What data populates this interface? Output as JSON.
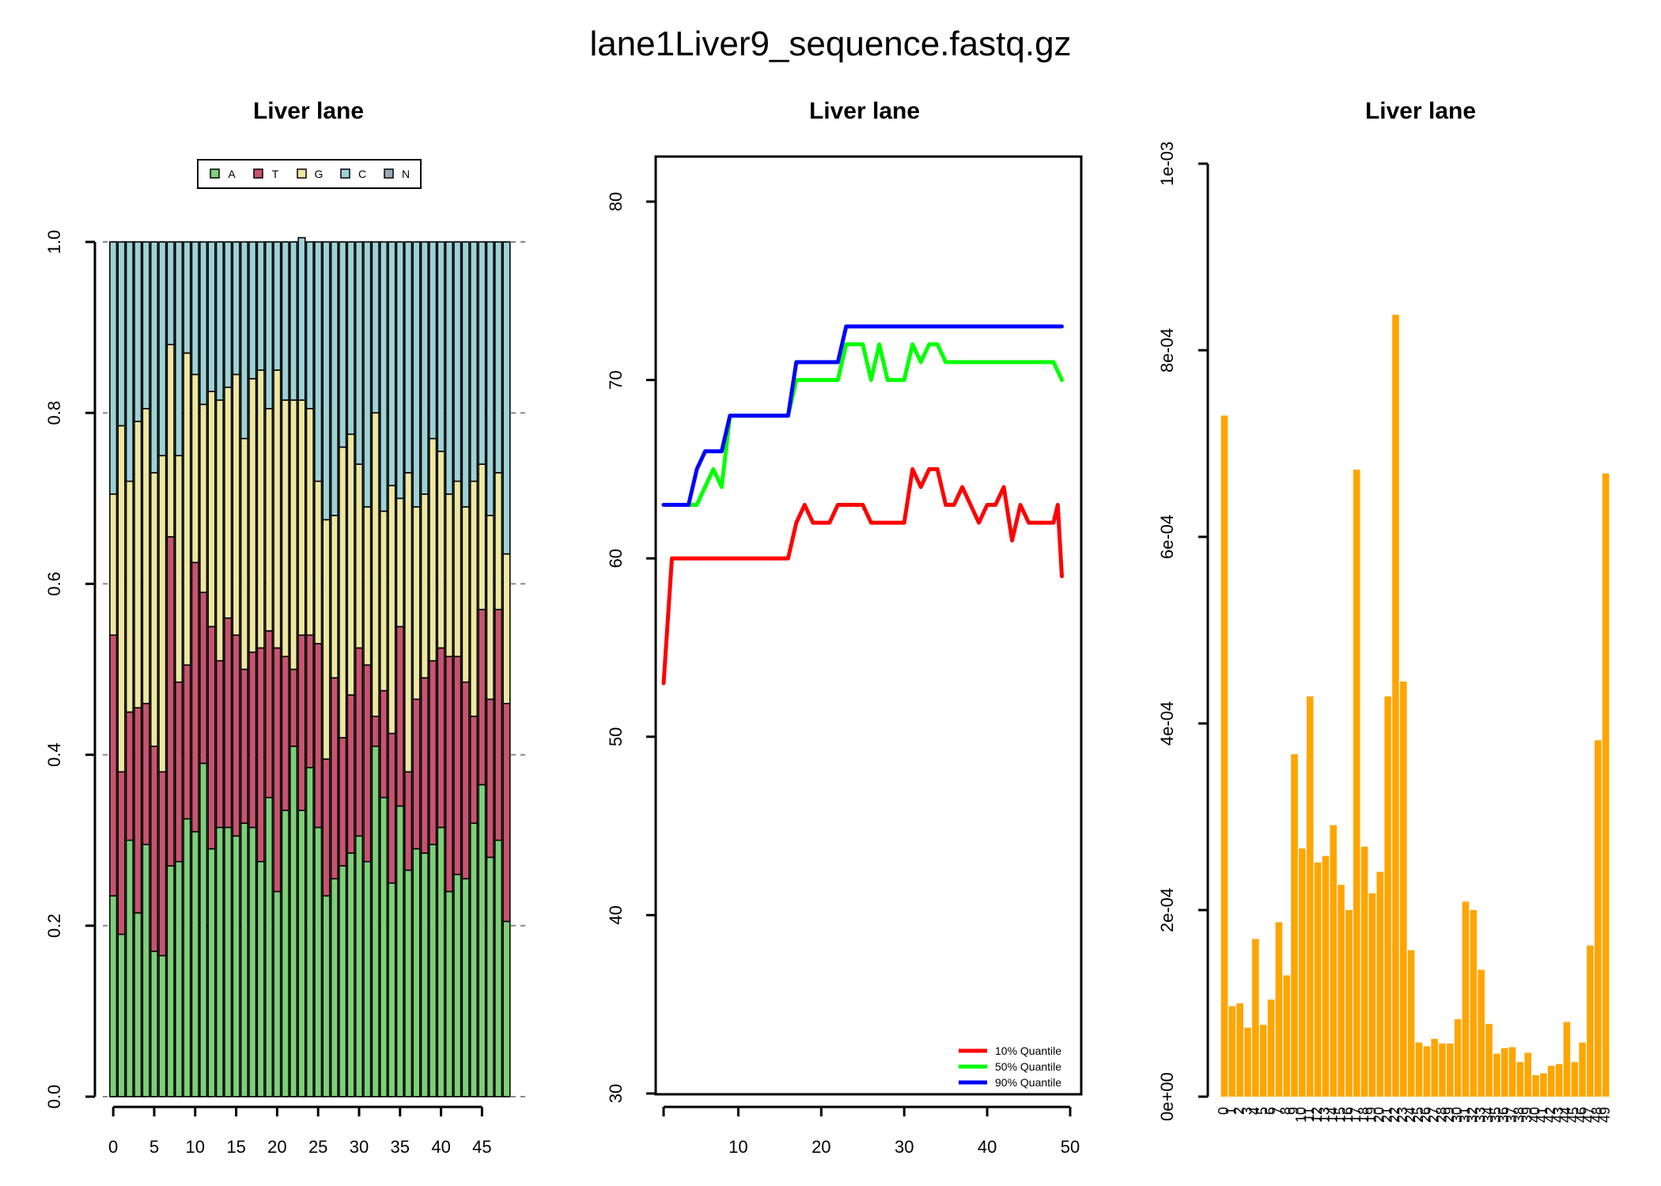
{
  "figure_title": "lane1Liver9_sequence.fastq.gz",
  "chart_data": [
    {
      "type": "bar",
      "stacked": true,
      "title": "Liver lane",
      "legend": {
        "placement": "top",
        "entries": [
          "A",
          "T",
          "G",
          "C",
          "N"
        ]
      },
      "x": [
        0,
        1,
        2,
        3,
        4,
        5,
        6,
        7,
        8,
        9,
        10,
        11,
        12,
        13,
        14,
        15,
        16,
        17,
        18,
        19,
        20,
        21,
        22,
        23,
        24,
        25,
        26,
        27,
        28,
        29,
        30,
        31,
        32,
        33,
        34,
        35,
        36,
        37,
        38,
        39,
        40,
        41,
        42,
        43,
        44,
        45,
        46,
        47,
        48
      ],
      "xticks": [
        0,
        5,
        10,
        15,
        20,
        25,
        30,
        35,
        40,
        45
      ],
      "ylim": [
        0,
        1
      ],
      "yticks": [
        "0.0",
        "0.2",
        "0.4",
        "0.6",
        "0.8",
        "1.0"
      ],
      "grid": "horizontal dashed",
      "series": [
        {
          "name": "A",
          "color": "#7dcf78",
          "values": [
            0.235,
            0.19,
            0.3,
            0.215,
            0.295,
            0.17,
            0.165,
            0.27,
            0.275,
            0.325,
            0.31,
            0.39,
            0.29,
            0.315,
            0.315,
            0.305,
            0.32,
            0.315,
            0.275,
            0.35,
            0.24,
            0.335,
            0.41,
            0.335,
            0.385,
            0.315,
            0.235,
            0.255,
            0.27,
            0.285,
            0.305,
            0.275,
            0.41,
            0.35,
            0.25,
            0.34,
            0.265,
            0.29,
            0.285,
            0.295,
            0.315,
            0.24,
            0.26,
            0.255,
            0.32,
            0.365,
            0.28,
            0.3,
            0.205
          ]
        },
        {
          "name": "T",
          "color": "#c7546e",
          "values": [
            0.305,
            0.19,
            0.15,
            0.24,
            0.165,
            0.24,
            0.215,
            0.385,
            0.21,
            0.18,
            0.315,
            0.2,
            0.26,
            0.195,
            0.245,
            0.235,
            0.18,
            0.205,
            0.25,
            0.195,
            0.285,
            0.18,
            0.09,
            0.205,
            0.155,
            0.215,
            0.16,
            0.235,
            0.15,
            0.185,
            0.22,
            0.23,
            0.035,
            0.125,
            0.175,
            0.21,
            0.115,
            0.175,
            0.205,
            0.215,
            0.21,
            0.275,
            0.255,
            0.23,
            0.125,
            0.205,
            0.185,
            0.27,
            0.255
          ]
        },
        {
          "name": "G",
          "color": "#eee7a0",
          "values": [
            0.165,
            0.405,
            0.27,
            0.335,
            0.345,
            0.32,
            0.37,
            0.225,
            0.265,
            0.365,
            0.22,
            0.22,
            0.275,
            0.305,
            0.27,
            0.305,
            0.27,
            0.32,
            0.325,
            0.26,
            0.325,
            0.3,
            0.315,
            0.275,
            0.265,
            0.19,
            0.28,
            0.19,
            0.34,
            0.305,
            0.215,
            0.185,
            0.355,
            0.21,
            0.29,
            0.15,
            0.35,
            0.225,
            0.215,
            0.26,
            0.23,
            0.19,
            0.205,
            0.205,
            0.275,
            0.17,
            0.215,
            0.16,
            0.175
          ]
        },
        {
          "name": "C",
          "color": "#9dd2d6",
          "values": [
            0.295,
            0.215,
            0.28,
            0.21,
            0.195,
            0.27,
            0.25,
            0.12,
            0.25,
            0.13,
            0.155,
            0.19,
            0.175,
            0.185,
            0.17,
            0.155,
            0.23,
            0.16,
            0.15,
            0.195,
            0.15,
            0.185,
            0.185,
            0.19,
            0.195,
            0.28,
            0.325,
            0.32,
            0.24,
            0.225,
            0.26,
            0.31,
            0.2,
            0.315,
            0.285,
            0.3,
            0.27,
            0.31,
            0.295,
            0.23,
            0.245,
            0.295,
            0.28,
            0.31,
            0.28,
            0.26,
            0.32,
            0.27,
            0.365
          ]
        },
        {
          "name": "N",
          "color": "#9aa9b3",
          "values": [
            0,
            0,
            0,
            0,
            0,
            0,
            0,
            0,
            0,
            0,
            0,
            0,
            0,
            0,
            0,
            0,
            0,
            0,
            0,
            0,
            0,
            0,
            0,
            0,
            0,
            0,
            0,
            0,
            0,
            0,
            0,
            0,
            0,
            0,
            0,
            0,
            0,
            0,
            0,
            0,
            0,
            0,
            0,
            0,
            0,
            0,
            0,
            0,
            0
          ]
        }
      ]
    },
    {
      "type": "line",
      "title": "Liver lane",
      "xlim": [
        1,
        49
      ],
      "ylim": [
        30,
        80
      ],
      "xticks": [
        10,
        20,
        30,
        40,
        50
      ],
      "yticks": [
        30,
        40,
        50,
        60,
        70,
        80
      ],
      "legend": {
        "placement": "bottom-right"
      },
      "series": [
        {
          "name": "10% Quantile",
          "color": "#ff0000",
          "points": [
            [
              1,
              53
            ],
            [
              2,
              60
            ],
            [
              16,
              60
            ],
            [
              17,
              62
            ],
            [
              18,
              63
            ],
            [
              19,
              62
            ],
            [
              21,
              62
            ],
            [
              22,
              63
            ],
            [
              25,
              63
            ],
            [
              26,
              62
            ],
            [
              30,
              62
            ],
            [
              31,
              65
            ],
            [
              32,
              64
            ],
            [
              33,
              65
            ],
            [
              34,
              65
            ],
            [
              35,
              63
            ],
            [
              36,
              63
            ],
            [
              37,
              64
            ],
            [
              39,
              62
            ],
            [
              40,
              63
            ],
            [
              41,
              63
            ],
            [
              42,
              64
            ],
            [
              43,
              61
            ],
            [
              44,
              63
            ],
            [
              45,
              62
            ],
            [
              48,
              62
            ],
            [
              48.5,
              63
            ],
            [
              49,
              59
            ]
          ]
        },
        {
          "name": "50% Quantile",
          "color": "#00ff00",
          "points": [
            [
              1,
              63
            ],
            [
              5,
              63
            ],
            [
              7,
              65
            ],
            [
              8,
              64
            ],
            [
              9,
              68
            ],
            [
              16,
              68
            ],
            [
              17,
              70
            ],
            [
              22,
              70
            ],
            [
              23,
              72
            ],
            [
              25,
              72
            ],
            [
              26,
              70
            ],
            [
              27,
              72
            ],
            [
              28,
              70
            ],
            [
              30,
              70
            ],
            [
              31,
              72
            ],
            [
              32,
              71
            ],
            [
              33,
              72
            ],
            [
              34,
              72
            ],
            [
              35,
              71
            ],
            [
              48,
              71
            ],
            [
              49,
              70
            ]
          ]
        },
        {
          "name": "90% Quantile",
          "color": "#0000ff",
          "points": [
            [
              1,
              63
            ],
            [
              4,
              63
            ],
            [
              5,
              65
            ],
            [
              6,
              66
            ],
            [
              8,
              66
            ],
            [
              9,
              68
            ],
            [
              16,
              68
            ],
            [
              17,
              71
            ],
            [
              22,
              71
            ],
            [
              23,
              73
            ],
            [
              49,
              73
            ]
          ]
        }
      ]
    },
    {
      "type": "bar",
      "title": "Liver lane",
      "color": "#ffa500",
      "ylim": [
        0,
        0.001
      ],
      "yticks": [
        "0e+00",
        "2e-04",
        "4e-04",
        "6e-04",
        "8e-04",
        "1e-03"
      ],
      "categories": [
        "0",
        "1",
        "2",
        "3",
        "4",
        "5",
        "6",
        "7",
        "8",
        "9",
        "10",
        "11",
        "12",
        "13",
        "14",
        "15",
        "16",
        "17",
        "18",
        "19",
        "20",
        "21",
        "22",
        "23",
        "24",
        "25",
        "26",
        "27",
        "28",
        "29",
        "30",
        "31",
        "32",
        "33",
        "34",
        "35",
        "36",
        "37",
        "38",
        "39",
        "40",
        "41",
        "42",
        "43",
        "44",
        "45",
        "46",
        "47",
        "48",
        "49"
      ],
      "values": [
        0.00073,
        9.7e-05,
        0.0001,
        7.4e-05,
        0.000169,
        7.7e-05,
        0.000104,
        0.000187,
        0.00013,
        0.000367,
        0.000266,
        0.000429,
        0.000251,
        0.000258,
        0.000291,
        0.000227,
        0.0002,
        0.000672,
        0.000268,
        0.000218,
        0.000241,
        0.000429,
        0.000838,
        0.000445,
        0.000157,
        5.8e-05,
        5.4e-05,
        6.2e-05,
        5.7e-05,
        5.7e-05,
        8.3e-05,
        0.000209,
        0.0002,
        0.000136,
        7.8e-05,
        4.6e-05,
        5.2e-05,
        5.3e-05,
        3.7e-05,
        4.7e-05,
        2.3e-05,
        2.5e-05,
        3.3e-05,
        3.5e-05,
        8e-05,
        3.7e-05,
        5.8e-05,
        0.000162,
        0.000382,
        0.000668
      ]
    }
  ]
}
